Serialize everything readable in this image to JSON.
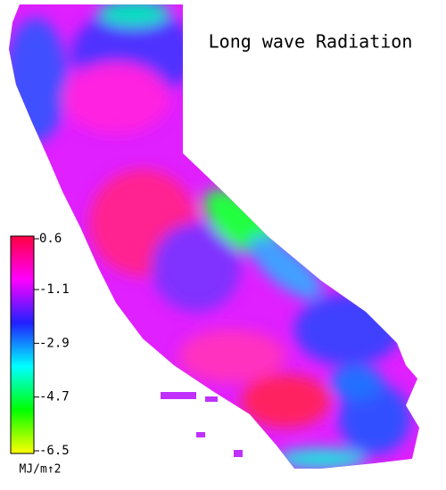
{
  "title": "Long wave Radiation",
  "colorbar": {
    "lim": [
      -6.5,
      0.6
    ],
    "ticks": [
      0.6,
      -1.1,
      -2.9,
      -4.7,
      -6.5
    ],
    "unit": "MJ/m↑2",
    "colors": [
      "#ff0040",
      "#ff00ff",
      "#2020ff",
      "#00ffff",
      "#00ff00",
      "#ffff00"
    ]
  }
}
